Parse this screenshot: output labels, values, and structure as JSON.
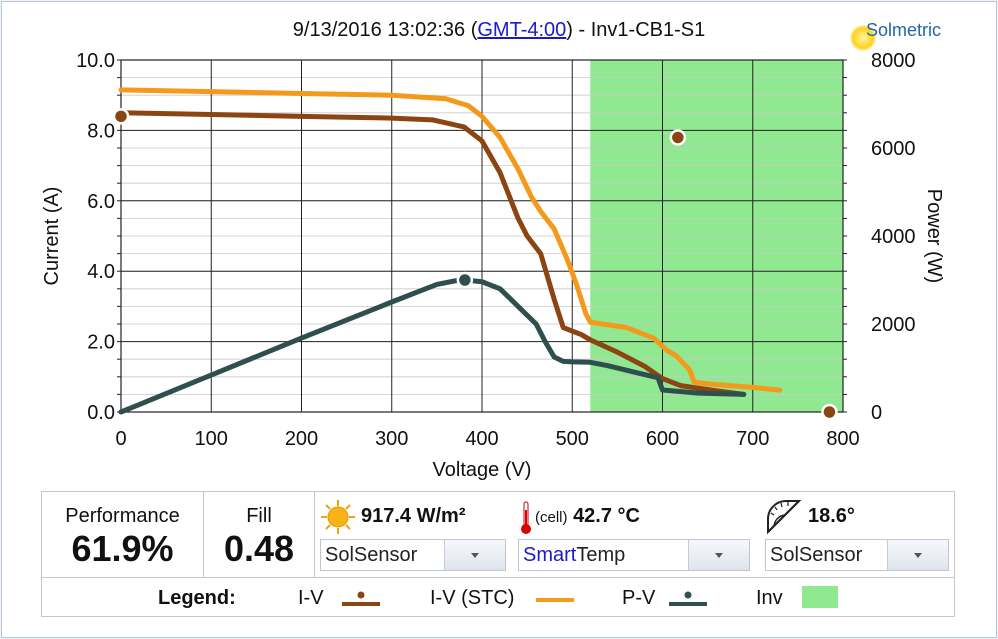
{
  "header": {
    "timestamp": "9/13/2016 13:02:36",
    "tz_link": "GMT-4:00",
    "device": "Inv1-CB1-S1",
    "logo": "Solmetric"
  },
  "chart_data": {
    "type": "line",
    "xlabel": "Voltage (V)",
    "ylabel": "Current (A)",
    "y2label": "Power (W)",
    "xlim": [
      0,
      800
    ],
    "ylim": [
      0,
      10
    ],
    "y2lim": [
      0,
      8000
    ],
    "xticks": [
      0,
      100,
      200,
      300,
      400,
      500,
      600,
      700,
      800
    ],
    "yticks": [
      "0.0",
      "2.0",
      "4.0",
      "6.0",
      "8.0",
      "10.0"
    ],
    "y2ticks": [
      0,
      2000,
      4000,
      6000,
      8000
    ],
    "grid": true,
    "inverter_window": {
      "name": "Inv",
      "x": [
        520,
        800
      ],
      "color": "#90e890"
    },
    "series": [
      {
        "name": "I-V",
        "axis": "left",
        "color": "#8b4513",
        "x": [
          0,
          100,
          200,
          300,
          345,
          380,
          400,
          420,
          440,
          450,
          465,
          480,
          490,
          500,
          510,
          520,
          550,
          580,
          600,
          620,
          660,
          690
        ],
        "y": [
          8.5,
          8.45,
          8.4,
          8.35,
          8.3,
          8.1,
          7.7,
          6.8,
          5.5,
          5.0,
          4.5,
          3.2,
          2.4,
          2.3,
          2.2,
          2.05,
          1.7,
          1.3,
          0.95,
          0.75,
          0.6,
          0.5
        ]
      },
      {
        "name": "I-V (STC)",
        "axis": "left",
        "color": "#f39a1c",
        "x": [
          0,
          100,
          200,
          300,
          360,
          385,
          400,
          420,
          440,
          455,
          465,
          480,
          495,
          505,
          515,
          520,
          560,
          590,
          605,
          615,
          630,
          635,
          650,
          700,
          730
        ],
        "y": [
          9.15,
          9.1,
          9.05,
          9.0,
          8.9,
          8.7,
          8.4,
          7.8,
          6.9,
          6.1,
          5.7,
          5.2,
          4.3,
          3.6,
          2.8,
          2.55,
          2.4,
          2.1,
          1.75,
          1.6,
          1.2,
          0.85,
          0.8,
          0.7,
          0.62
        ]
      },
      {
        "name": "P-V",
        "axis": "right",
        "color": "#2f4f4f",
        "x": [
          0,
          100,
          200,
          300,
          350,
          370,
          381,
          400,
          420,
          440,
          460,
          470,
          480,
          490,
          500,
          520,
          540,
          560,
          580,
          595,
          600,
          640,
          690
        ],
        "y": [
          0,
          840,
          1680,
          2500,
          2900,
          2980,
          3000,
          2960,
          2800,
          2400,
          2000,
          1600,
          1250,
          1150,
          1140,
          1130,
          1050,
          950,
          850,
          780,
          500,
          430,
          400
        ]
      }
    ],
    "markers": [
      {
        "series": "I-V",
        "x": 0,
        "y": 8.4,
        "axis": "left"
      },
      {
        "series": "P-V",
        "x": 381,
        "y": 3000,
        "axis": "right"
      },
      {
        "series": "I-V",
        "x": 617,
        "y": 7.8,
        "axis": "left"
      },
      {
        "series": "I-V",
        "x": 785,
        "y": 0,
        "axis": "left"
      }
    ]
  },
  "stats": {
    "performance_label": "Performance",
    "performance_value": "61.9%",
    "fill_label": "Fill",
    "fill_value": "0.48"
  },
  "sensors": {
    "irradiance": "917.4 W/m²",
    "cell_label": "(cell)",
    "temperature": "42.7 °C",
    "tilt": "18.6°",
    "irr_source": "SolSensor",
    "temp_source_accent": "Smart",
    "temp_source_rest": "Temp",
    "tilt_source": "SolSensor"
  },
  "legend": {
    "label": "Legend:",
    "iv": "I-V",
    "iv_stc": "I-V (STC)",
    "pv": "P-V",
    "inv": "Inv"
  },
  "colors": {
    "iv": "#8b4513",
    "iv_stc": "#f39a1c",
    "pv": "#2f4f4f",
    "inv": "#90e890",
    "accent_blue": "#1a1acc"
  }
}
